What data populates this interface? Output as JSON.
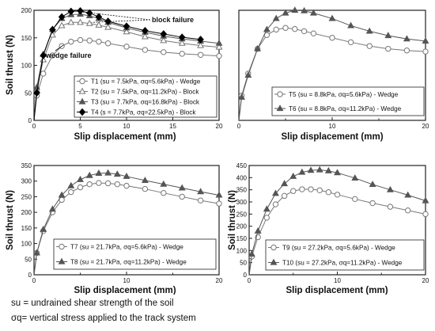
{
  "chart_data": [
    {
      "type": "line",
      "panel": "top-left",
      "xlabel": "Slip displacement (mm)",
      "ylabel": "Soil thrust (N)",
      "xlim": [
        0,
        20
      ],
      "ylim": [
        0,
        200
      ],
      "xticks": [
        0,
        5,
        10,
        15,
        20
      ],
      "yticks": [
        0,
        50,
        100,
        150,
        200
      ],
      "legend_position": "bottom-right",
      "series": [
        {
          "name": "T1 (su = 7.5kPa, σq=5.6kPa) - Wedge",
          "marker": "open-circle",
          "color": "#777777",
          "x": [
            0,
            0.3,
            1,
            2,
            3,
            4,
            5,
            6,
            7,
            8,
            10,
            12,
            14,
            16,
            18,
            20
          ],
          "y": [
            0,
            45,
            85,
            118,
            135,
            143,
            146,
            145,
            143,
            140,
            134,
            128,
            124,
            121,
            119,
            117
          ]
        },
        {
          "name": "T2 (su = 7.5kPa, σq=11.2kPa) - Block",
          "marker": "open-triangle",
          "color": "#777777",
          "x": [
            0,
            0.3,
            1,
            2,
            3,
            4,
            5,
            6,
            7,
            8,
            10,
            12,
            14,
            16,
            18,
            20
          ],
          "y": [
            0,
            55,
            110,
            155,
            172,
            178,
            178,
            176,
            173,
            169,
            161,
            152,
            145,
            140,
            136,
            133
          ]
        },
        {
          "name": "T3 (su = 7.7kPa, σq=16.8kPa) - Block",
          "marker": "filled-triangle",
          "color": "#555555",
          "x": [
            0,
            0.3,
            1,
            2,
            3,
            4,
            5,
            6,
            7,
            8,
            10,
            12,
            14,
            16,
            18,
            20
          ],
          "y": [
            0,
            60,
            120,
            165,
            185,
            192,
            193,
            190,
            185,
            178,
            168,
            160,
            153,
            148,
            144,
            140
          ]
        },
        {
          "name": "T4 (s = 7.7kPa, σq=22.5kPa) - Block",
          "marker": "filled-diamond",
          "color": "#000000",
          "x": [
            0,
            0.3,
            1,
            2,
            3,
            4,
            5,
            6,
            7,
            8,
            10,
            12,
            14,
            16,
            18
          ],
          "y": [
            0,
            50,
            118,
            165,
            188,
            198,
            199,
            195,
            188,
            180,
            171,
            163,
            157,
            151,
            147
          ]
        }
      ],
      "annotations": [
        {
          "text": "block failure",
          "near": "peaks"
        },
        {
          "text": "wedge failure",
          "near": "low curve"
        }
      ]
    },
    {
      "type": "line",
      "panel": "top-right",
      "xlabel": "Slip displacement (mm)",
      "ylabel": "",
      "xlim": [
        0,
        20
      ],
      "ylim": [
        0,
        200
      ],
      "xticks": [
        0,
        10,
        20
      ],
      "yticks": [],
      "legend_position": "bottom-right",
      "series": [
        {
          "name": "T5 (su = 8.8kPa, σq=5.6kPa) - Wedge",
          "marker": "open-circle",
          "color": "#777777",
          "x": [
            0,
            0.3,
            1,
            2,
            3,
            4,
            5,
            6,
            7,
            8,
            10,
            12,
            14,
            16,
            18,
            20
          ],
          "y": [
            0,
            45,
            85,
            130,
            155,
            165,
            168,
            166,
            162,
            158,
            150,
            142,
            135,
            130,
            127,
            125
          ]
        },
        {
          "name": "T6 (su = 8.8kPa, σq=11.2kPa) - Wedge",
          "marker": "filled-triangle",
          "color": "#555555",
          "x": [
            0,
            0.3,
            1,
            2,
            3,
            4,
            5,
            6,
            7,
            8,
            10,
            12,
            14,
            16,
            18,
            20
          ],
          "y": [
            0,
            42,
            82,
            130,
            165,
            185,
            195,
            200,
            199,
            195,
            185,
            172,
            162,
            154,
            148,
            144
          ]
        }
      ]
    },
    {
      "type": "line",
      "panel": "bottom-left",
      "xlabel": "Slip displacement (mm)",
      "ylabel": "Soil thrust (N)",
      "xlim": [
        0,
        20
      ],
      "ylim": [
        0,
        350
      ],
      "xticks": [
        0,
        10,
        20
      ],
      "yticks": [
        0,
        50,
        100,
        150,
        200,
        250,
        300,
        350
      ],
      "legend_position": "bottom-right",
      "series": [
        {
          "name": "T7 (su = 21.7kPa, σq=5.6kPa) - Wedge",
          "marker": "open-circle",
          "color": "#777777",
          "x": [
            0,
            0.3,
            1,
            2,
            3,
            4,
            5,
            6,
            7,
            8,
            9,
            10,
            12,
            14,
            16,
            18,
            20
          ],
          "y": [
            0,
            70,
            140,
            200,
            240,
            265,
            280,
            290,
            294,
            293,
            290,
            285,
            275,
            262,
            250,
            238,
            228
          ]
        },
        {
          "name": "T8 (su = 21.7kPa, σq=11.2kPa) - Wedge",
          "marker": "filled-triangle",
          "color": "#555555",
          "x": [
            0,
            0.3,
            1,
            2,
            3,
            4,
            5,
            6,
            7,
            8,
            9,
            10,
            12,
            14,
            16,
            18,
            20
          ],
          "y": [
            0,
            70,
            145,
            210,
            255,
            285,
            305,
            318,
            325,
            326,
            322,
            315,
            302,
            290,
            278,
            266,
            255
          ]
        }
      ]
    },
    {
      "type": "line",
      "panel": "bottom-right",
      "xlabel": "Slip displacement (mm)",
      "ylabel": "Soil thrust (N)",
      "xlim": [
        0,
        20
      ],
      "ylim": [
        0,
        450
      ],
      "xticks": [
        0,
        10,
        20
      ],
      "yticks": [
        0,
        50,
        100,
        150,
        200,
        250,
        300,
        350,
        400,
        450
      ],
      "legend_position": "bottom-right",
      "series": [
        {
          "name": "T9 (su = 27.2kPa, σq=5.6kPa) - Wedge",
          "marker": "open-circle",
          "color": "#777777",
          "x": [
            0,
            0.3,
            1,
            2,
            3,
            4,
            5,
            6,
            7,
            8,
            9,
            10,
            12,
            14,
            16,
            18,
            20
          ],
          "y": [
            0,
            75,
            155,
            235,
            290,
            325,
            345,
            352,
            352,
            348,
            340,
            330,
            312,
            295,
            280,
            265,
            250
          ]
        },
        {
          "name": "T10 (su = 27.2kPa, σq=11.2kPa) - Wedge",
          "marker": "filled-triangle",
          "color": "#555555",
          "x": [
            0,
            0.3,
            1,
            2,
            3,
            4,
            5,
            6,
            7,
            8,
            9,
            10,
            12,
            14,
            16,
            18,
            20
          ],
          "y": [
            0,
            85,
            180,
            270,
            335,
            375,
            405,
            422,
            430,
            432,
            428,
            420,
            398,
            372,
            350,
            328,
            305
          ]
        }
      ]
    }
  ],
  "footnotes": {
    "line1": "su = undrained shear strength of the soil",
    "line2": "σq= vertical stress applied to the track system"
  }
}
